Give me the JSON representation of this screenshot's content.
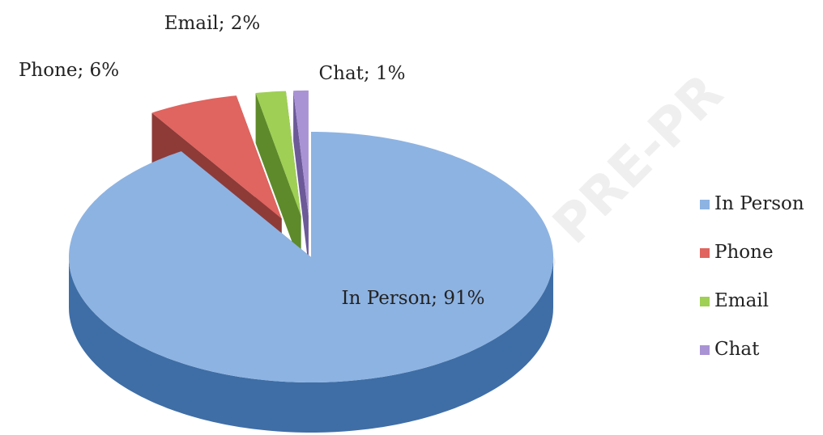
{
  "chart_data": {
    "type": "pie",
    "title": null,
    "categories": [
      "In Person",
      "Phone",
      "Email",
      "Chat"
    ],
    "values": [
      91,
      6,
      2,
      1
    ],
    "value_labels": [
      "In Person; 91%",
      "Phone; 6%",
      "Email; 2%",
      "Chat; 1%"
    ],
    "colors": [
      "#8db3e2",
      "#e0645f",
      "#9fcf55",
      "#a993d4"
    ],
    "side_colors": [
      "#3f6ea6",
      "#8e3b38",
      "#5e8a2b",
      "#6c5a98"
    ],
    "legend": "right",
    "watermark": "RARIES PRE-PR"
  }
}
